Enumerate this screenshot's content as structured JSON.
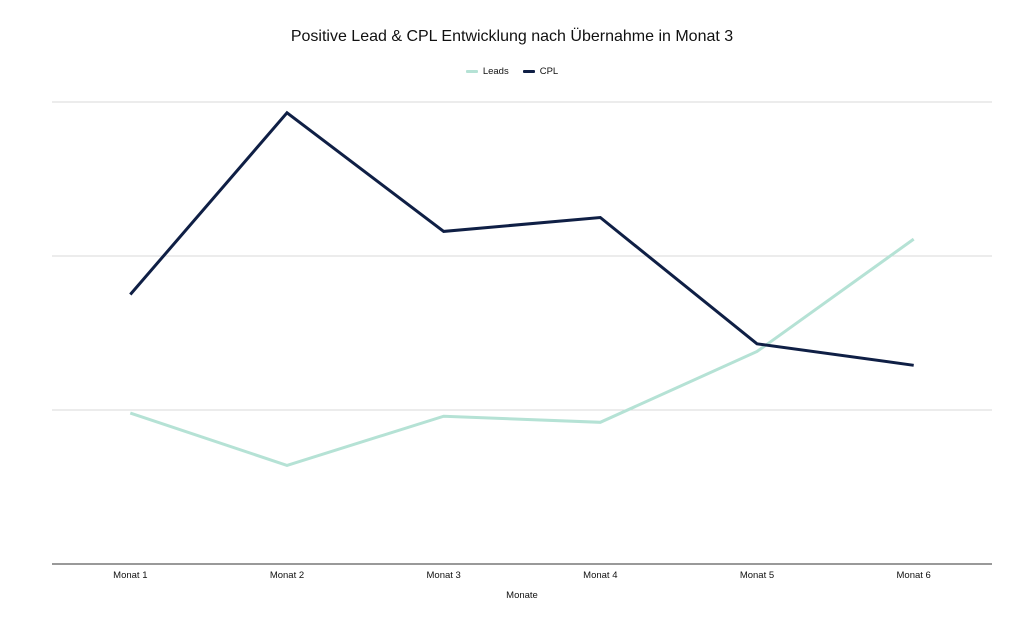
{
  "chart_data": {
    "type": "line",
    "title": "Positive Lead & CPL Entwicklung nach Übernahme in Monat 3",
    "xlabel": "Monate",
    "ylabel": "",
    "categories": [
      "Monat 1",
      "Monat 2",
      "Monat 3",
      "Monat 4",
      "Monat 5",
      "Monat 6"
    ],
    "series": [
      {
        "name": "Leads",
        "color": "#b5e2d5",
        "values": [
          0.98,
          0.64,
          0.96,
          0.92,
          1.38,
          2.11
        ]
      },
      {
        "name": "CPL",
        "color": "#0f1f45",
        "values": [
          1.75,
          2.93,
          2.16,
          2.25,
          1.43,
          1.29
        ]
      }
    ],
    "ylim": [
      0,
      3
    ],
    "grid": true,
    "legend": "top-center",
    "gridline_color": "#d9d9d9",
    "axis_color": "#333333"
  }
}
